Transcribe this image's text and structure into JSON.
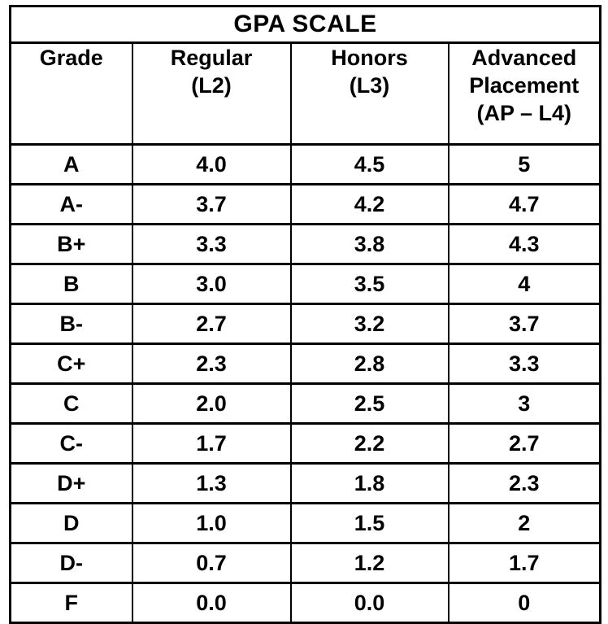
{
  "title": "GPA SCALE",
  "table": {
    "columns": [
      {
        "name": "Grade",
        "code": ""
      },
      {
        "name": "Regular",
        "code": "(L2)"
      },
      {
        "name": "Honors",
        "code": "(L3)"
      },
      {
        "name": "Advanced Placement",
        "code": "(AP – L4)"
      }
    ],
    "rows": [
      [
        "A",
        "4.0",
        "4.5",
        "5"
      ],
      [
        "A-",
        "3.7",
        "4.2",
        "4.7"
      ],
      [
        "B+",
        "3.3",
        "3.8",
        "4.3"
      ],
      [
        "B",
        "3.0",
        "3.5",
        "4"
      ],
      [
        "B-",
        "2.7",
        "3.2",
        "3.7"
      ],
      [
        "C+",
        "2.3",
        "2.8",
        "3.3"
      ],
      [
        "C",
        "2.0",
        "2.5",
        "3"
      ],
      [
        "C-",
        "1.7",
        "2.2",
        "2.7"
      ],
      [
        "D+",
        "1.3",
        "1.8",
        "2.3"
      ],
      [
        "D",
        "1.0",
        "1.5",
        "2"
      ],
      [
        "D-",
        "0.7",
        "1.2",
        "1.7"
      ],
      [
        "F",
        "0.0",
        "0.0",
        "0"
      ]
    ]
  },
  "colors": {
    "border": "#000000",
    "text": "#000000",
    "background": "#ffffff"
  },
  "chart_data": {
    "type": "table",
    "title": "GPA SCALE",
    "columns": [
      "Grade",
      "Regular (L2)",
      "Honors (L3)",
      "Advanced Placement (AP – L4)"
    ],
    "rows": [
      [
        "A",
        "4.0",
        "4.5",
        "5"
      ],
      [
        "A-",
        "3.7",
        "4.2",
        "4.7"
      ],
      [
        "B+",
        "3.3",
        "3.8",
        "4.3"
      ],
      [
        "B",
        "3.0",
        "3.5",
        "4"
      ],
      [
        "B-",
        "2.7",
        "3.2",
        "3.7"
      ],
      [
        "C+",
        "2.3",
        "2.8",
        "3.3"
      ],
      [
        "C",
        "2.0",
        "2.5",
        "3"
      ],
      [
        "C-",
        "1.7",
        "2.2",
        "2.7"
      ],
      [
        "D+",
        "1.3",
        "1.8",
        "2.3"
      ],
      [
        "D",
        "1.0",
        "1.5",
        "2"
      ],
      [
        "D-",
        "0.7",
        "1.2",
        "1.7"
      ],
      [
        "F",
        "0.0",
        "0.0",
        "0"
      ]
    ]
  }
}
